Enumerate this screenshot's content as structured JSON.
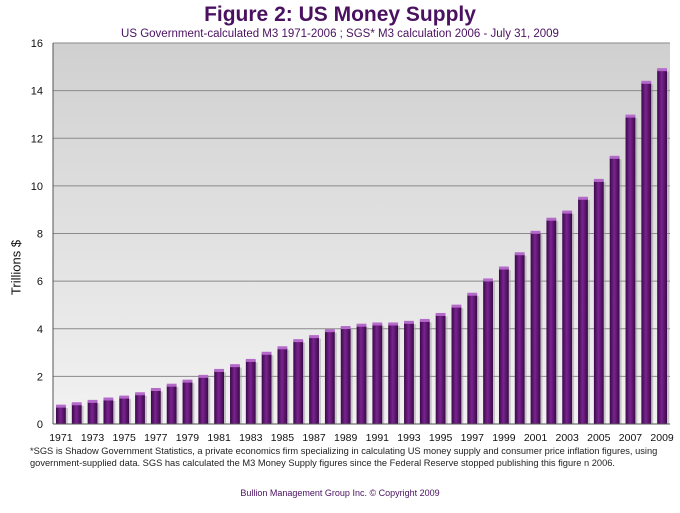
{
  "chart_data": {
    "type": "bar",
    "title": "Figure 2: US Money Supply",
    "subtitle": "US Government-calculated  M3 1971-2006 ; SGS* M3 calculation 2006 - July 31, 2009",
    "xlabel": "",
    "ylabel": "Trillions $",
    "ylim": [
      0,
      16
    ],
    "yticks": [
      0,
      2,
      4,
      6,
      8,
      10,
      12,
      14,
      16
    ],
    "grid": true,
    "bar_color": "#5a0f6a",
    "plot_background": "#d6d6d6",
    "categories": [
      "1971",
      "1972",
      "1973",
      "1974",
      "1975",
      "1976",
      "1977",
      "1978",
      "1979",
      "1980",
      "1981",
      "1982",
      "1983",
      "1984",
      "1985",
      "1986",
      "1987",
      "1988",
      "1989",
      "1990",
      "1991",
      "1992",
      "1993",
      "1994",
      "1995",
      "1996",
      "1997",
      "1998",
      "1999",
      "2000",
      "2001",
      "2002",
      "2003",
      "2004",
      "2005",
      "2006",
      "2007",
      "2008",
      "2009"
    ],
    "x_tick_labels": [
      "1971",
      "1973",
      "1975",
      "1977",
      "1979",
      "1981",
      "1983",
      "1985",
      "1987",
      "1989",
      "1991",
      "1993",
      "1995",
      "1997",
      "1999",
      "2001",
      "2003",
      "2005",
      "2007",
      "2009"
    ],
    "values": [
      0.75,
      0.85,
      0.95,
      1.05,
      1.13,
      1.27,
      1.45,
      1.63,
      1.8,
      2.0,
      2.25,
      2.45,
      2.67,
      2.97,
      3.2,
      3.5,
      3.67,
      3.92,
      4.05,
      4.15,
      4.2,
      4.2,
      4.27,
      4.35,
      4.6,
      4.95,
      5.45,
      6.05,
      6.55,
      7.15,
      8.05,
      8.6,
      8.9,
      9.48,
      10.23,
      11.2,
      12.93,
      14.35,
      14.88
    ]
  },
  "footnote": "*SGS is Shadow Government Statistics,  a private economics firm specializing  in calculating  US money supply  and consumer price inflation figures,  using government-supplied  data.  SGS has calculated the M3 Money Supply figures since the Federal Reserve stopped publishing  this figure n 2006.",
  "credit": "Bullion Management Group Inc. © Copyright 2009"
}
